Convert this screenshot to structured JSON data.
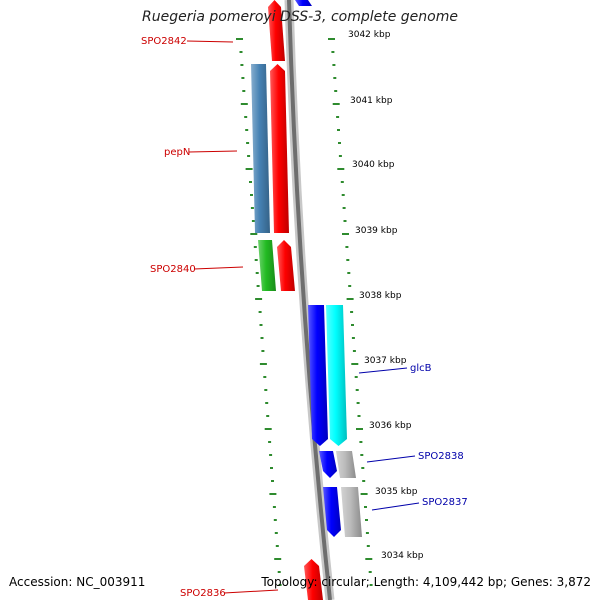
{
  "title": "Ruegeria pomeroyi DSS-3, complete genome",
  "footer": {
    "accession": "Accession: NC_003911",
    "topology": "Topology: circular; Length: 4,109,442 bp; Genes: 3,872"
  },
  "colors": {
    "backbone": "#808080",
    "tick": "#2e8b2e",
    "label_forward": "#cc0000",
    "label_reverse": "#0000aa"
  },
  "kbp_labels": [
    "3042 kbp",
    "3041 kbp",
    "3040 kbp",
    "3039 kbp",
    "3038 kbp",
    "3037 kbp",
    "3036 kbp",
    "3035 kbp",
    "3034 kbp"
  ],
  "genes": [
    {
      "id": "gene-red-top",
      "color": "#ff0000",
      "strand": "forward"
    },
    {
      "id": "gene-red-pepN-pair",
      "color": "#ff0000",
      "strand": "forward"
    },
    {
      "id": "gene-steelblue-pepN",
      "color": "#4682b4",
      "strand": "forward"
    },
    {
      "id": "gene-green",
      "color": "#22bb22",
      "strand": "forward"
    },
    {
      "id": "gene-red-2840-pair",
      "color": "#ff0000",
      "strand": "forward"
    },
    {
      "id": "gene-blue-top",
      "color": "#0000ff",
      "strand": "reverse"
    },
    {
      "id": "gene-blue-glcB",
      "color": "#0000ff",
      "strand": "reverse"
    },
    {
      "id": "gene-cyan-glcB",
      "color": "#00ffff",
      "strand": "reverse"
    },
    {
      "id": "gene-blue-2838",
      "color": "#0000ff",
      "strand": "reverse"
    },
    {
      "id": "gene-grey-2838",
      "color": "#bbbbbb",
      "strand": "reverse"
    },
    {
      "id": "gene-blue-2837",
      "color": "#0000ff",
      "strand": "reverse"
    },
    {
      "id": "gene-grey-2837",
      "color": "#bbbbbb",
      "strand": "reverse"
    },
    {
      "id": "gene-red-2836",
      "color": "#ff0000",
      "strand": "forward"
    }
  ],
  "gene_labels": [
    {
      "text": "SPO2842",
      "side": "left"
    },
    {
      "text": "pepN",
      "side": "left"
    },
    {
      "text": "SPO2840",
      "side": "left"
    },
    {
      "text": "glcB",
      "side": "right"
    },
    {
      "text": "SPO2838",
      "side": "right"
    },
    {
      "text": "SPO2837",
      "side": "right"
    },
    {
      "text": "SPO2836",
      "side": "left"
    }
  ]
}
